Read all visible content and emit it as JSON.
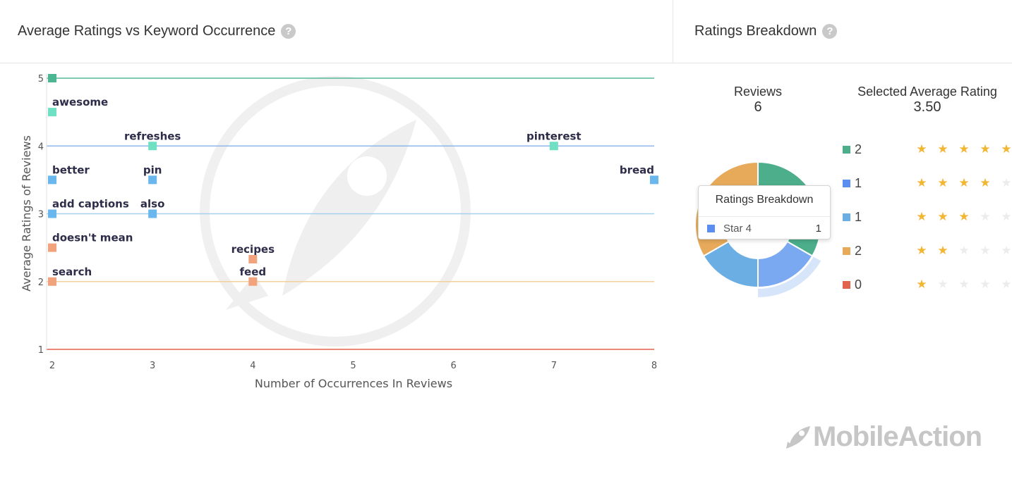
{
  "left_panel": {
    "title": "Average Ratings vs Keyword Occurrence",
    "help": "?"
  },
  "right_panel": {
    "title": "Ratings Breakdown",
    "help": "?"
  },
  "chart_data": [
    {
      "type": "scatter",
      "title": "Average Ratings vs Keyword Occurrence",
      "xlabel": "Number of Occurrences In Reviews",
      "ylabel": "Average Ratings of Reviews",
      "xlim": [
        2,
        8
      ],
      "ylim": [
        1,
        5
      ],
      "xticks": [
        2,
        3,
        4,
        5,
        6,
        7,
        8
      ],
      "yticks": [
        1,
        2,
        3,
        4,
        5
      ],
      "reference_lines": [
        {
          "y": 5,
          "color": "#55b896"
        },
        {
          "y": 4,
          "color": "#8fb5ea"
        },
        {
          "y": 3,
          "color": "#a3d2ee"
        },
        {
          "y": 2,
          "color": "#f3d09a"
        },
        {
          "y": 1,
          "color": "#e8614f"
        }
      ],
      "points": [
        {
          "label": "",
          "x": 2,
          "y": 5.0,
          "color": "#4cb592"
        },
        {
          "label": "awesome",
          "x": 2,
          "y": 4.5,
          "color": "#6fe0c2"
        },
        {
          "label": "refreshes",
          "x": 3,
          "y": 4.0,
          "color": "#6fe0c2"
        },
        {
          "label": "pinterest",
          "x": 7,
          "y": 4.0,
          "color": "#6fe0c2"
        },
        {
          "label": "better",
          "x": 2,
          "y": 3.5,
          "color": "#6ab7ee"
        },
        {
          "label": "pin",
          "x": 3,
          "y": 3.5,
          "color": "#6ab7ee"
        },
        {
          "label": "bread",
          "x": 8,
          "y": 3.5,
          "color": "#6ab7ee"
        },
        {
          "label": "add captions",
          "x": 2,
          "y": 3.0,
          "color": "#6ab7ee"
        },
        {
          "label": "also",
          "x": 3,
          "y": 3.0,
          "color": "#6ab7ee"
        },
        {
          "label": "doesn't mean",
          "x": 2,
          "y": 2.5,
          "color": "#f0a37c"
        },
        {
          "label": "recipes",
          "x": 4,
          "y": 2.33,
          "color": "#f0a37c"
        },
        {
          "label": "search",
          "x": 2,
          "y": 2.0,
          "color": "#f0a37c"
        },
        {
          "label": "feed",
          "x": 4,
          "y": 2.0,
          "color": "#f0a37c"
        }
      ]
    },
    {
      "type": "pie",
      "title": "Ratings Breakdown",
      "slices": [
        {
          "name": "Star 5",
          "value": 2,
          "color": "#4cae8b"
        },
        {
          "name": "Star 4",
          "value": 1,
          "color": "#7aa9f2"
        },
        {
          "name": "Star 3",
          "value": 1,
          "color": "#6aaee4"
        },
        {
          "name": "Star 2",
          "value": 2,
          "color": "#e6aa5a"
        },
        {
          "name": "Star 1",
          "value": 0,
          "color": "#e2634e"
        }
      ],
      "highlighted": "Star 4"
    }
  ],
  "summary": {
    "reviews_label": "Reviews",
    "reviews_value": "6",
    "average_label": "Selected Average Rating",
    "average_value": "3.50"
  },
  "breakdown": [
    {
      "count": "2",
      "stars": 5,
      "color": "#4cae8b"
    },
    {
      "count": "1",
      "stars": 4,
      "color": "#5b8ef0"
    },
    {
      "count": "1",
      "stars": 3,
      "color": "#6aaee4"
    },
    {
      "count": "2",
      "stars": 2,
      "color": "#e6aa5a"
    },
    {
      "count": "0",
      "stars": 1,
      "color": "#e2634e"
    }
  ],
  "tooltip": {
    "title": "Ratings Breakdown",
    "series": "Star 4",
    "value": "1",
    "color": "#5b8ef0"
  },
  "logo": {
    "text": "MobileAction"
  },
  "icons": {
    "help": "help-circle-icon",
    "star": "star-icon",
    "logo": "rocket-logo-icon"
  }
}
